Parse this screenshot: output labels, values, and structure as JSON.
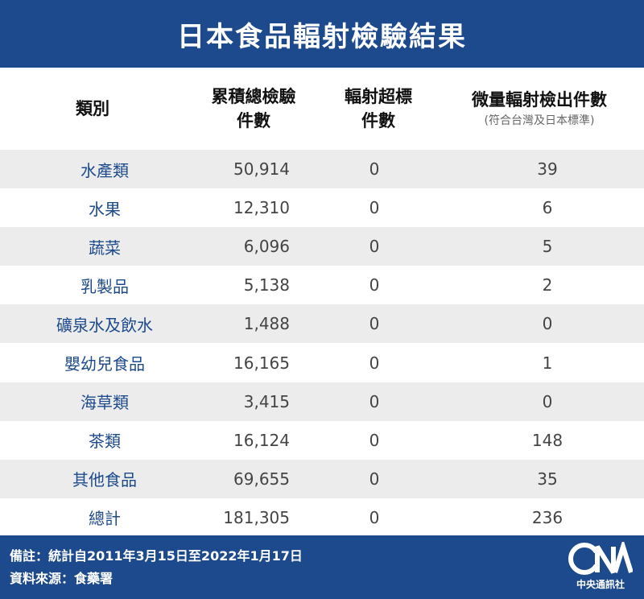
{
  "title": "日本食品輻射檢驗結果",
  "header": {
    "category": "類別",
    "total_line1": "累積總檢驗",
    "total_line2": "件數",
    "exceed_line1": "輻射超標",
    "exceed_line2": "件數",
    "trace_line1": "微量輻射檢出件數",
    "trace_line2": "(符合台灣及日本標準)"
  },
  "rows": [
    {
      "category": "水產類",
      "total": "50,914",
      "exceed": "0",
      "trace": "39"
    },
    {
      "category": "水果",
      "total": "12,310",
      "exceed": "0",
      "trace": "6"
    },
    {
      "category": "蔬菜",
      "total": "6,096",
      "exceed": "0",
      "trace": "5"
    },
    {
      "category": "乳製品",
      "total": "5,138",
      "exceed": "0",
      "trace": "2"
    },
    {
      "category": "礦泉水及飲水",
      "total": "1,488",
      "exceed": "0",
      "trace": "0"
    },
    {
      "category": "嬰幼兒食品",
      "total": "16,165",
      "exceed": "0",
      "trace": "1"
    },
    {
      "category": "海草類",
      "total": "3,415",
      "exceed": "0",
      "trace": "0"
    },
    {
      "category": "茶類",
      "total": "16,124",
      "exceed": "0",
      "trace": "148"
    },
    {
      "category": "其他食品",
      "total": "69,655",
      "exceed": "0",
      "trace": "35"
    },
    {
      "category": "總計",
      "total": "181,305",
      "exceed": "0",
      "trace": "236"
    }
  ],
  "footer": {
    "note": "備註：統計自2011年3月15日至2022年1月17日",
    "source": "資料來源：食藥署",
    "logo_mark": "CNA",
    "logo_text": "中央通訊社"
  },
  "colors": {
    "brand_blue": "#1d4a8c",
    "row_shade": "#ececec",
    "category_text": "#1d4a8c"
  }
}
